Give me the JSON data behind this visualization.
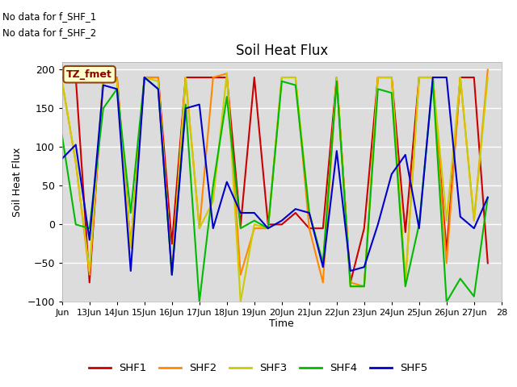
{
  "title": "Soil Heat Flux",
  "ylabel": "Soil Heat Flux",
  "xlabel": "Time",
  "text_no_data": [
    "No data for f_SHF_1",
    "No data for f_SHF_2"
  ],
  "tz_label": "TZ_fmet",
  "ylim": [
    -100,
    210
  ],
  "yticks": [
    -100,
    -50,
    0,
    50,
    100,
    150,
    200
  ],
  "background_color": "#dcdcdc",
  "xtick_positions": [
    12,
    13,
    14,
    15,
    16,
    17,
    18,
    19,
    20,
    21,
    22,
    23,
    24,
    25,
    26,
    27,
    28
  ],
  "xtick_labels": [
    "Jun",
    "13Jun",
    "14Jun",
    "15Jun",
    "16Jun",
    "17Jun",
    "18Jun",
    "19Jun",
    "20Jun",
    "21Jun",
    "22Jun",
    "23Jun",
    "24Jun",
    "25Jun",
    "26Jun",
    "27Jun",
    "28"
  ],
  "SHF1": {
    "color": "#cc0000",
    "x": [
      12.0,
      12.5,
      13.0,
      13.5,
      14.0,
      14.5,
      15.0,
      15.5,
      16.0,
      16.5,
      17.0,
      17.5,
      18.0,
      18.5,
      19.0,
      19.5,
      20.0,
      20.5,
      21.0,
      21.5,
      22.0,
      22.5,
      23.0,
      23.5,
      24.0,
      24.5,
      25.0,
      25.5,
      26.0,
      26.5,
      27.0,
      27.5
    ],
    "y": [
      190,
      190,
      -75,
      190,
      190,
      -30,
      190,
      190,
      -25,
      190,
      190,
      190,
      190,
      -2,
      190,
      0,
      0,
      15,
      -5,
      -5,
      190,
      -75,
      -5,
      190,
      190,
      -10,
      190,
      190,
      -35,
      190,
      190,
      -50
    ]
  },
  "SHF2": {
    "color": "#ff8800",
    "x": [
      12.0,
      12.5,
      13.0,
      13.5,
      14.0,
      14.5,
      15.0,
      15.5,
      16.0,
      16.5,
      17.0,
      17.5,
      18.0,
      18.5,
      19.0,
      19.5,
      20.0,
      20.5,
      21.0,
      21.5,
      22.0,
      22.5,
      23.0,
      23.5,
      24.0,
      24.5,
      25.0,
      25.5,
      26.0,
      26.5,
      27.0,
      27.5
    ],
    "y": [
      185,
      80,
      -65,
      190,
      190,
      -30,
      190,
      190,
      -60,
      190,
      -5,
      190,
      195,
      -65,
      -5,
      -5,
      190,
      190,
      -5,
      -75,
      190,
      -75,
      -80,
      190,
      190,
      -75,
      190,
      190,
      -50,
      190,
      5,
      200
    ]
  },
  "SHF3": {
    "color": "#cccc00",
    "x": [
      12.0,
      12.5,
      13.0,
      13.5,
      14.0,
      14.5,
      15.0,
      15.5,
      16.0,
      16.5,
      17.0,
      17.5,
      18.0,
      18.5,
      19.0,
      19.5,
      20.0,
      20.5,
      21.0,
      21.5,
      22.0,
      22.5,
      23.0,
      23.5,
      24.0,
      24.5,
      25.0,
      25.5,
      26.0,
      26.5,
      27.0,
      27.5
    ],
    "y": [
      185,
      80,
      -60,
      190,
      185,
      -30,
      190,
      185,
      -65,
      190,
      -5,
      30,
      195,
      -100,
      0,
      -5,
      190,
      190,
      15,
      -50,
      190,
      -80,
      -80,
      190,
      190,
      -75,
      190,
      190,
      5,
      190,
      5,
      190
    ]
  },
  "SHF4": {
    "color": "#00bb00",
    "x": [
      12.0,
      12.5,
      13.0,
      13.5,
      14.0,
      14.5,
      15.0,
      15.5,
      16.0,
      16.5,
      17.0,
      17.5,
      18.0,
      18.5,
      19.0,
      19.5,
      20.0,
      20.5,
      21.0,
      21.5,
      22.0,
      22.5,
      23.0,
      23.5,
      24.0,
      24.5,
      25.0,
      25.5,
      26.0,
      26.5,
      27.0,
      27.5
    ],
    "y": [
      115,
      0,
      -5,
      150,
      175,
      15,
      190,
      175,
      -65,
      155,
      -100,
      50,
      165,
      -5,
      5,
      -5,
      185,
      180,
      15,
      -50,
      185,
      -80,
      -80,
      175,
      170,
      -80,
      0,
      185,
      -100,
      -70,
      -93,
      35
    ]
  },
  "SHF5": {
    "color": "#0000cc",
    "x": [
      12.0,
      12.5,
      13.0,
      13.5,
      14.0,
      14.5,
      15.0,
      15.5,
      16.0,
      16.5,
      17.0,
      17.5,
      18.0,
      18.5,
      19.0,
      19.5,
      20.0,
      20.5,
      21.0,
      21.5,
      22.0,
      22.5,
      23.0,
      23.5,
      24.0,
      24.5,
      25.0,
      25.5,
      26.0,
      26.5,
      27.0,
      27.5
    ],
    "y": [
      85,
      103,
      -20,
      180,
      175,
      -60,
      190,
      175,
      -65,
      150,
      155,
      -5,
      55,
      15,
      15,
      -5,
      5,
      20,
      15,
      -55,
      95,
      -60,
      -55,
      0,
      65,
      90,
      -5,
      190,
      190,
      10,
      -5,
      35
    ]
  },
  "legend_entries": [
    "SHF1",
    "SHF2",
    "SHF3",
    "SHF4",
    "SHF5"
  ],
  "legend_colors": [
    "#cc0000",
    "#ff8800",
    "#cccc00",
    "#00bb00",
    "#0000cc"
  ]
}
